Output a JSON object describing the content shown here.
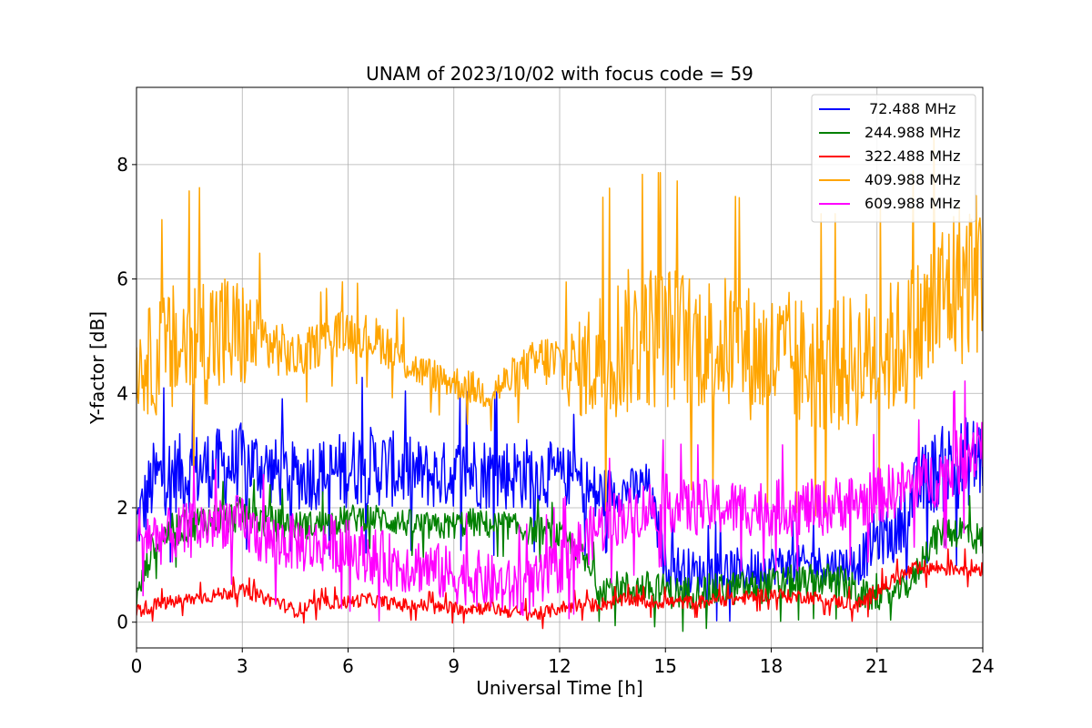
{
  "chart_data": {
    "type": "line",
    "title": "UNAM of 2023/10/02 with focus code = 59",
    "xlabel": "Universal Time [h]",
    "ylabel": "Y-factor [dB]",
    "xlim": [
      0,
      24
    ],
    "ylim": [
      -0.45,
      9.35
    ],
    "xticks": [
      0,
      3,
      6,
      9,
      12,
      15,
      18,
      21,
      24
    ],
    "yticks": [
      0,
      2,
      4,
      6,
      8
    ],
    "grid": true,
    "legend_position": "top-right",
    "series": [
      {
        "name": " 72.488 MHz",
        "color": "#0000ff",
        "x": [
          0,
          0.5,
          1,
          1.5,
          2,
          2.5,
          3,
          3.5,
          4,
          4.5,
          5,
          5.5,
          6,
          6.5,
          7,
          7.5,
          8,
          8.5,
          9,
          9.5,
          10,
          10.5,
          11,
          11.5,
          12,
          12.5,
          13,
          13.5,
          14,
          14.5,
          15,
          15.5,
          16,
          16.5,
          17,
          17.5,
          18,
          18.5,
          19,
          19.5,
          20,
          20.5,
          21,
          21.5,
          22,
          22.5,
          23,
          23.5,
          24
        ],
        "values": [
          1.7,
          2.5,
          2.6,
          2.6,
          2.7,
          2.7,
          2.8,
          2.75,
          2.6,
          2.55,
          2.6,
          2.6,
          2.7,
          2.75,
          2.7,
          2.65,
          2.6,
          2.55,
          2.6,
          2.65,
          2.6,
          2.6,
          2.6,
          2.6,
          2.55,
          2.5,
          2.2,
          2.3,
          2.3,
          2.4,
          1.0,
          0.9,
          0.85,
          0.9,
          0.9,
          0.9,
          1.0,
          1.0,
          1.0,
          1.0,
          1.0,
          1.05,
          1.5,
          1.5,
          2.2,
          2.6,
          2.7,
          2.8,
          2.9
        ],
        "spread": [
          0.6,
          0.7,
          0.7,
          0.7,
          0.7,
          0.7,
          0.7,
          0.65,
          0.6,
          0.6,
          0.65,
          0.65,
          0.7,
          0.7,
          0.7,
          0.65,
          0.6,
          0.6,
          0.6,
          0.65,
          0.65,
          0.65,
          0.65,
          0.6,
          0.55,
          0.5,
          0.6,
          0.4,
          0.4,
          0.4,
          0.4,
          0.45,
          0.35,
          0.4,
          0.4,
          0.4,
          0.35,
          0.35,
          0.35,
          0.35,
          0.35,
          0.4,
          0.5,
          0.5,
          0.6,
          0.7,
          0.8,
          0.8,
          0.8
        ]
      },
      {
        "name": "244.988 MHz",
        "color": "#008000",
        "x": [
          0,
          0.5,
          1,
          1.5,
          2,
          2.5,
          3,
          3.5,
          4,
          4.5,
          5,
          5.5,
          6,
          6.5,
          7,
          7.5,
          8,
          8.5,
          9,
          9.5,
          10,
          10.5,
          11,
          11.5,
          12,
          12.5,
          13,
          13.5,
          14,
          14.5,
          15,
          15.5,
          16,
          16.5,
          17,
          17.5,
          18,
          18.5,
          19,
          19.5,
          20,
          20.5,
          21,
          21.5,
          22,
          22.5,
          23,
          23.5,
          24
        ],
        "values": [
          0.4,
          1.4,
          1.6,
          1.7,
          1.8,
          1.8,
          1.9,
          1.8,
          1.7,
          1.7,
          1.7,
          1.75,
          1.8,
          1.85,
          1.8,
          1.75,
          1.7,
          1.65,
          1.7,
          1.75,
          1.7,
          1.7,
          1.6,
          1.6,
          1.5,
          1.3,
          0.7,
          0.6,
          0.6,
          0.6,
          0.55,
          0.5,
          0.55,
          0.55,
          0.6,
          0.6,
          0.65,
          0.7,
          0.7,
          0.75,
          0.7,
          0.5,
          0.4,
          0.5,
          0.7,
          1.4,
          1.6,
          1.6,
          1.4
        ],
        "spread": [
          0.2,
          0.3,
          0.3,
          0.3,
          0.3,
          0.3,
          0.3,
          0.3,
          0.3,
          0.25,
          0.25,
          0.25,
          0.25,
          0.25,
          0.25,
          0.25,
          0.25,
          0.25,
          0.25,
          0.25,
          0.25,
          0.25,
          0.25,
          0.25,
          0.25,
          0.25,
          0.3,
          0.3,
          0.3,
          0.3,
          0.3,
          0.3,
          0.3,
          0.3,
          0.3,
          0.3,
          0.3,
          0.3,
          0.3,
          0.3,
          0.3,
          0.3,
          0.2,
          0.2,
          0.25,
          0.3,
          0.3,
          0.3,
          0.3
        ]
      },
      {
        "name": "322.488 MHz",
        "color": "#ff0000",
        "x": [
          0,
          0.5,
          1,
          1.5,
          2,
          2.5,
          3,
          3.5,
          4,
          4.5,
          5,
          5.5,
          6,
          6.5,
          7,
          7.5,
          8,
          8.5,
          9,
          9.5,
          10,
          10.5,
          11,
          11.5,
          12,
          12.5,
          13,
          13.5,
          14,
          14.5,
          15,
          15.5,
          16,
          16.5,
          17,
          17.5,
          18,
          18.5,
          19,
          19.5,
          20,
          20.5,
          21,
          21.5,
          22,
          22.5,
          23,
          23.5,
          24
        ],
        "values": [
          0.2,
          0.3,
          0.35,
          0.4,
          0.45,
          0.5,
          0.55,
          0.45,
          0.35,
          0.2,
          0.3,
          0.35,
          0.35,
          0.4,
          0.35,
          0.3,
          0.3,
          0.25,
          0.25,
          0.25,
          0.25,
          0.2,
          0.15,
          0.15,
          0.25,
          0.3,
          0.3,
          0.35,
          0.4,
          0.35,
          0.35,
          0.35,
          0.35,
          0.4,
          0.4,
          0.45,
          0.5,
          0.45,
          0.45,
          0.4,
          0.35,
          0.3,
          0.55,
          0.75,
          0.9,
          0.95,
          0.95,
          0.95,
          0.95
        ],
        "spread": [
          0.15,
          0.12,
          0.12,
          0.12,
          0.12,
          0.12,
          0.12,
          0.12,
          0.12,
          0.12,
          0.12,
          0.12,
          0.12,
          0.12,
          0.12,
          0.12,
          0.12,
          0.12,
          0.12,
          0.12,
          0.12,
          0.12,
          0.12,
          0.12,
          0.12,
          0.12,
          0.12,
          0.12,
          0.12,
          0.12,
          0.12,
          0.12,
          0.12,
          0.12,
          0.12,
          0.12,
          0.12,
          0.12,
          0.12,
          0.12,
          0.12,
          0.15,
          0.15,
          0.15,
          0.15,
          0.15,
          0.15,
          0.15,
          0.15
        ]
      },
      {
        "name": "409.988 MHz",
        "color": "#ffa500",
        "x": [
          0,
          0.5,
          1,
          1.5,
          2,
          2.5,
          3,
          3.5,
          4,
          4.5,
          5,
          5.5,
          6,
          6.5,
          7,
          7.5,
          8,
          8.5,
          9,
          9.5,
          10,
          10.5,
          11,
          11.5,
          12,
          12.5,
          13,
          13.5,
          14,
          14.5,
          15,
          15.5,
          16,
          16.5,
          17,
          17.5,
          18,
          18.5,
          19,
          19.5,
          20,
          20.5,
          21,
          21.5,
          22,
          22.5,
          23,
          23.5,
          24
        ],
        "values": [
          4.5,
          4.6,
          4.7,
          4.9,
          5.0,
          5.0,
          5.0,
          4.9,
          4.8,
          4.6,
          4.8,
          5.0,
          5.1,
          5.0,
          4.9,
          4.6,
          4.4,
          4.3,
          4.2,
          4.1,
          4.0,
          4.2,
          4.4,
          4.6,
          4.5,
          4.4,
          4.6,
          4.8,
          4.9,
          5.0,
          5.0,
          5.0,
          4.9,
          4.9,
          4.8,
          4.7,
          4.6,
          4.6,
          4.5,
          4.5,
          4.5,
          4.6,
          4.7,
          4.8,
          5.0,
          5.3,
          5.8,
          6.0,
          6.2
        ],
        "spread": [
          0.8,
          1.0,
          1.2,
          1.2,
          1.2,
          1.2,
          1.0,
          0.7,
          0.5,
          0.4,
          0.4,
          0.4,
          0.4,
          0.4,
          0.4,
          0.35,
          0.3,
          0.3,
          0.3,
          0.3,
          0.3,
          0.35,
          0.4,
          0.45,
          0.6,
          0.8,
          1.2,
          1.3,
          1.3,
          1.3,
          1.3,
          1.2,
          1.2,
          1.2,
          1.2,
          1.2,
          1.2,
          1.2,
          1.2,
          1.2,
          1.2,
          1.2,
          1.2,
          1.2,
          1.3,
          1.4,
          1.5,
          1.5,
          1.5
        ]
      },
      {
        "name": "609.988 MHz",
        "color": "#ff00ff",
        "x": [
          0,
          0.5,
          1,
          1.5,
          2,
          2.5,
          3,
          3.5,
          4,
          4.5,
          5,
          5.5,
          6,
          6.5,
          7,
          7.5,
          8,
          8.5,
          9,
          9.5,
          10,
          10.5,
          11,
          11.5,
          12,
          12.5,
          13,
          13.5,
          14,
          14.5,
          15,
          15.5,
          16,
          16.5,
          17,
          17.5,
          18,
          18.5,
          19,
          19.5,
          20,
          20.5,
          21,
          21.5,
          22,
          22.5,
          23,
          23.5,
          24
        ],
        "values": [
          1.6,
          1.5,
          1.5,
          1.6,
          1.7,
          1.8,
          1.7,
          1.5,
          1.4,
          1.4,
          1.3,
          1.4,
          1.3,
          1.2,
          1.1,
          1.0,
          1.0,
          0.9,
          0.8,
          0.8,
          0.7,
          0.6,
          0.6,
          0.7,
          1.0,
          1.3,
          1.6,
          1.8,
          1.9,
          2.0,
          2.1,
          2.0,
          2.0,
          2.0,
          2.0,
          2.0,
          2.0,
          2.0,
          2.0,
          2.0,
          2.1,
          2.1,
          2.2,
          2.3,
          2.4,
          2.5,
          2.6,
          2.9,
          3.3
        ],
        "spread": [
          0.5,
          0.5,
          0.5,
          0.5,
          0.5,
          0.5,
          0.5,
          0.5,
          0.5,
          0.5,
          0.5,
          0.5,
          0.5,
          0.5,
          0.5,
          0.5,
          0.5,
          0.5,
          0.5,
          0.5,
          0.5,
          0.5,
          0.5,
          0.5,
          0.5,
          0.5,
          0.5,
          0.5,
          0.5,
          0.5,
          0.5,
          0.5,
          0.5,
          0.5,
          0.5,
          0.5,
          0.5,
          0.5,
          0.5,
          0.5,
          0.5,
          0.5,
          0.5,
          0.5,
          0.5,
          0.5,
          0.6,
          0.6,
          0.7
        ]
      }
    ]
  }
}
